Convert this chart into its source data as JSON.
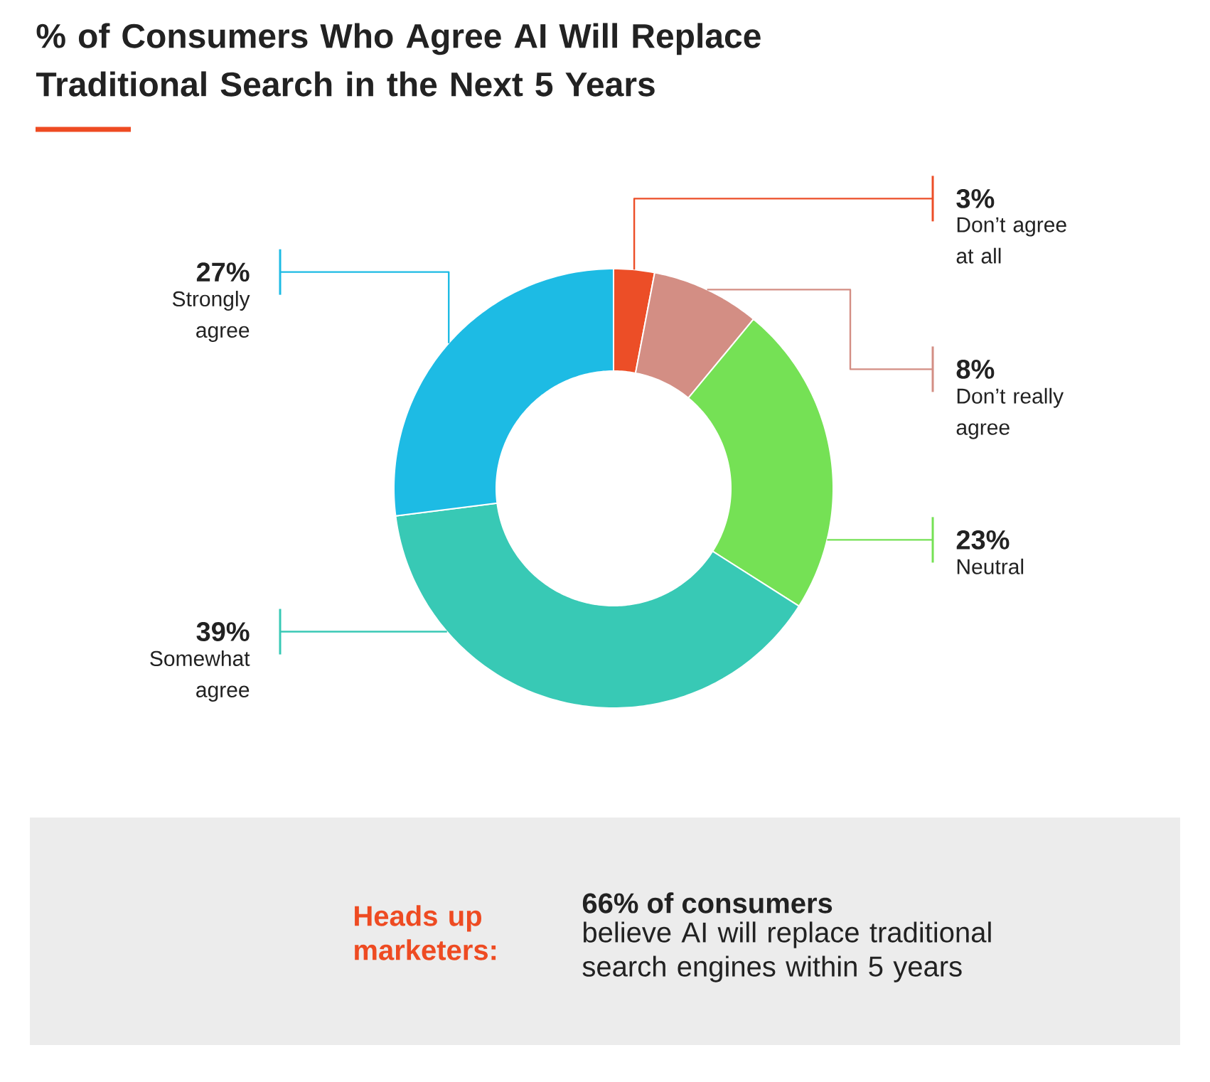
{
  "chart_data": {
    "type": "donut",
    "title": "% of Consumers Who Agree AI Will Replace Traditional Search in the Next 5 Years",
    "categories": [
      "Don’t agree at all",
      "Don’t really agree",
      "Neutral",
      "Somewhat agree",
      "Strongly agree"
    ],
    "values": [
      3,
      8,
      23,
      39,
      27
    ],
    "value_labels": [
      "3%",
      "8%",
      "23%",
      "39%",
      "27%"
    ],
    "colors": [
      "#ec4e27",
      "#d38e84",
      "#75e155",
      "#38c9b5",
      "#1dbbe4"
    ],
    "annotations": [
      "Heads up marketers:",
      "66% of consumers",
      "believe AI will replace traditional search engines within 5 years"
    ]
  }
}
